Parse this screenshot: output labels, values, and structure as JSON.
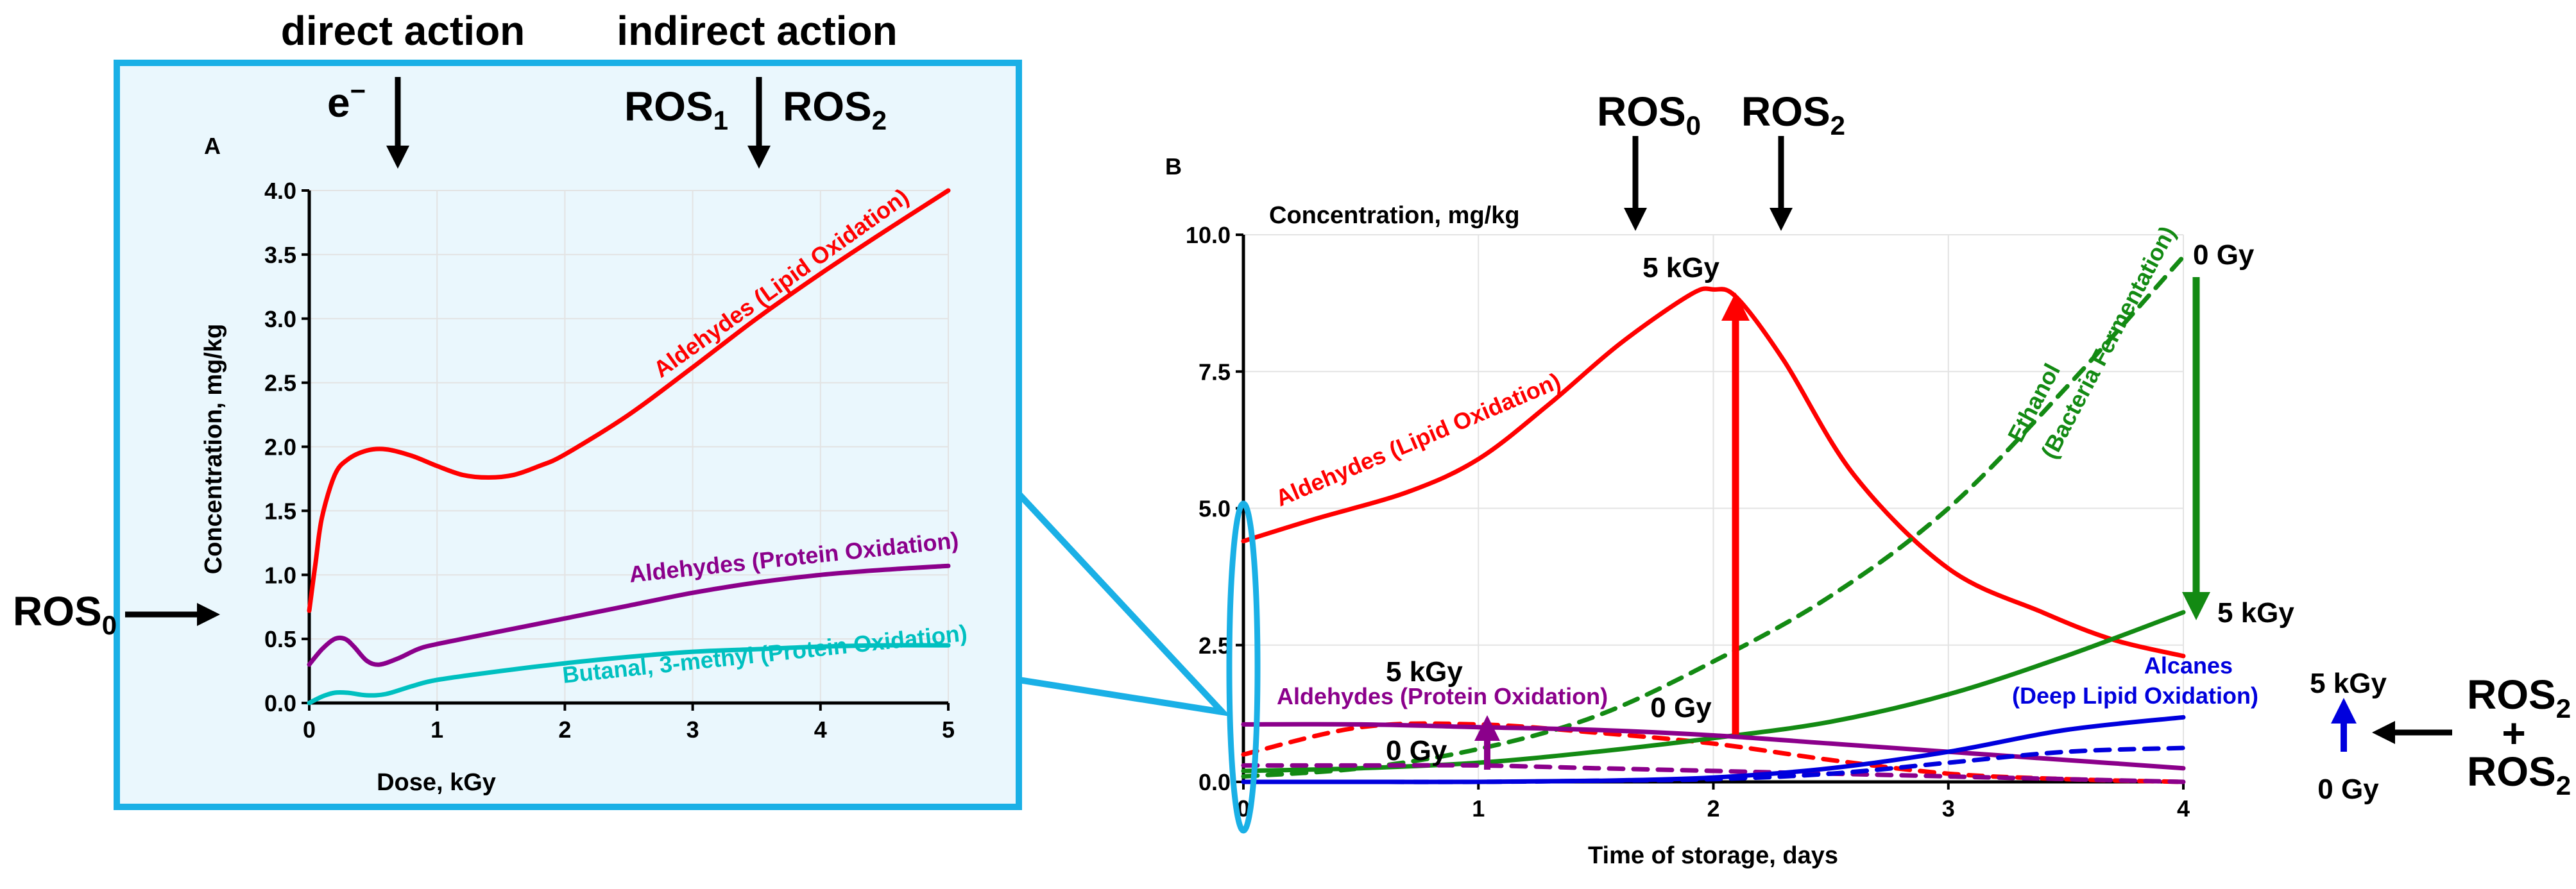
{
  "header": {
    "direct_action": "direct action",
    "indirect_action": "indirect action"
  },
  "colors": {
    "red": "#ff0000",
    "purple": "#8b008b",
    "cyan": "#00c0c0",
    "green": "#138a13",
    "blue": "#0000dd",
    "frame": "#1ab0e6",
    "inset_bg": "#eaf7fd"
  },
  "arrows": {
    "electron": "e",
    "electron_sup": "−",
    "ros1": "ROS",
    "ros1_sub": "1",
    "ros2": "ROS",
    "ros2_sub": "2",
    "ros0_left": "ROS",
    "ros0_left_sub": "0",
    "ros0_b": "ROS",
    "ros0_b_sub": "0",
    "ros2_b": "ROS",
    "ros2_b_sub": "2",
    "right_top": "ROS",
    "right_top_sub": "2",
    "plus": "+",
    "right_bottom": "ROS",
    "right_bottom_sub": "2"
  },
  "chart_data": [
    {
      "panel": "A",
      "type": "line",
      "xlabel": "Dose, kGy",
      "ylabel": "Concentration, mg/kg",
      "xlim": [
        0,
        5
      ],
      "ylim": [
        0,
        4.0
      ],
      "xticks": [
        "0",
        "1",
        "2",
        "3",
        "4",
        "5"
      ],
      "yticks": [
        "0.0",
        "0.5",
        "1.0",
        "1.5",
        "2.0",
        "2.5",
        "3.0",
        "3.5",
        "4.0"
      ],
      "grid": true,
      "series": [
        {
          "name": "Aldehydes (Lipid Oxidation)",
          "color": "#ff0000",
          "style": "solid",
          "x": [
            0,
            0.05,
            0.1,
            0.2,
            0.3,
            0.45,
            0.6,
            0.8,
            1.0,
            1.2,
            1.4,
            1.6,
            1.8,
            2.0,
            2.5,
            3.0,
            3.5,
            4.0,
            4.5,
            5.0
          ],
          "y": [
            0.72,
            1.1,
            1.45,
            1.78,
            1.9,
            1.97,
            1.98,
            1.93,
            1.85,
            1.78,
            1.76,
            1.78,
            1.85,
            1.94,
            2.25,
            2.62,
            3.0,
            3.35,
            3.68,
            4.0
          ]
        },
        {
          "name": "Aldehydes (Protein Oxidation)",
          "color": "#8b008b",
          "style": "solid",
          "x": [
            0,
            0.1,
            0.2,
            0.28,
            0.35,
            0.45,
            0.55,
            0.7,
            0.85,
            1.0,
            1.5,
            2.0,
            2.5,
            3.0,
            3.5,
            4.0,
            4.5,
            5.0
          ],
          "y": [
            0.3,
            0.42,
            0.5,
            0.5,
            0.44,
            0.33,
            0.3,
            0.35,
            0.42,
            0.46,
            0.56,
            0.66,
            0.76,
            0.86,
            0.94,
            1.0,
            1.04,
            1.07
          ]
        },
        {
          "name": "Butanal, 3-methyl (Protein Oxidation)",
          "color": "#00c0c0",
          "style": "solid",
          "x": [
            0,
            0.1,
            0.2,
            0.3,
            0.45,
            0.6,
            0.8,
            1.0,
            1.5,
            2.0,
            2.5,
            3.0,
            3.5,
            4.0,
            4.5,
            5.0
          ],
          "y": [
            0.0,
            0.05,
            0.08,
            0.08,
            0.06,
            0.07,
            0.13,
            0.18,
            0.25,
            0.31,
            0.36,
            0.4,
            0.42,
            0.44,
            0.45,
            0.45
          ]
        }
      ]
    },
    {
      "panel": "B",
      "type": "line",
      "title": "Concentration, mg/kg",
      "xlabel": "Time of storage, days",
      "xlim": [
        0,
        4
      ],
      "ylim": [
        0,
        10.0
      ],
      "xticks": [
        "0",
        "1",
        "2",
        "3",
        "4"
      ],
      "yticks": [
        "0.0",
        "2.5",
        "5.0",
        "7.5",
        "10.0"
      ],
      "grid": true,
      "series": [
        {
          "name": "Aldehydes (Lipid Oxidation) 5 kGy",
          "color": "#ff0000",
          "style": "solid",
          "x": [
            0,
            0.3,
            0.7,
            1.0,
            1.3,
            1.6,
            1.9,
            2.0,
            2.1,
            2.3,
            2.6,
            3.0,
            3.4,
            3.7,
            4.0
          ],
          "y": [
            4.4,
            4.8,
            5.3,
            5.9,
            6.9,
            8.0,
            8.9,
            9.0,
            8.85,
            7.7,
            5.6,
            3.9,
            3.1,
            2.6,
            2.3
          ]
        },
        {
          "name": "Aldehydes (Lipid Oxidation) 0 Gy",
          "color": "#ff0000",
          "style": "dashed",
          "x": [
            0,
            0.5,
            1.0,
            1.5,
            2.0,
            2.5,
            3.0,
            3.5,
            4.0
          ],
          "y": [
            0.5,
            1.0,
            1.05,
            0.9,
            0.7,
            0.4,
            0.15,
            0.05,
            0.0
          ]
        },
        {
          "name": "Ethanol (Bacteria Fermentation) 0 Gy",
          "color": "#138a13",
          "style": "dashed",
          "x": [
            0,
            0.5,
            1.0,
            1.5,
            2.0,
            2.5,
            3.0,
            3.5,
            4.0
          ],
          "y": [
            0.1,
            0.25,
            0.6,
            1.2,
            2.2,
            3.4,
            5.0,
            7.2,
            9.6
          ]
        },
        {
          "name": "Ethanol (Bacteria Fermentation) 5 kGy",
          "color": "#138a13",
          "style": "solid",
          "x": [
            0,
            0.5,
            1.0,
            1.5,
            2.0,
            2.5,
            3.0,
            3.5,
            4.0
          ],
          "y": [
            0.2,
            0.25,
            0.35,
            0.55,
            0.8,
            1.1,
            1.6,
            2.3,
            3.1
          ]
        },
        {
          "name": "Aldehydes (Protein Oxidation) 5 kGy",
          "color": "#8b008b",
          "style": "solid",
          "x": [
            0,
            0.5,
            1.0,
            1.5,
            2.0,
            2.5,
            3.0,
            3.5,
            4.0
          ],
          "y": [
            1.05,
            1.05,
            1.0,
            0.95,
            0.85,
            0.7,
            0.55,
            0.4,
            0.25
          ]
        },
        {
          "name": "Aldehydes (Protein Oxidation) 0 Gy",
          "color": "#8b008b",
          "style": "dashed",
          "x": [
            0,
            0.5,
            1.0,
            1.5,
            2.0,
            2.5,
            3.0,
            3.5,
            4.0
          ],
          "y": [
            0.3,
            0.3,
            0.3,
            0.25,
            0.2,
            0.15,
            0.1,
            0.05,
            0.0
          ]
        },
        {
          "name": "Alcanes (Deep Lipid Oxidation) 5 kGy",
          "color": "#0000dd",
          "style": "solid",
          "x": [
            0,
            0.5,
            1.0,
            1.5,
            2.0,
            2.5,
            3.0,
            3.5,
            4.0
          ],
          "y": [
            0.0,
            0.0,
            0.0,
            0.02,
            0.08,
            0.25,
            0.55,
            0.95,
            1.18
          ]
        },
        {
          "name": "Alcanes (Deep Lipid Oxidation) 0 Gy",
          "color": "#0000dd",
          "style": "dashed",
          "x": [
            0,
            0.5,
            1.0,
            1.5,
            2.0,
            2.5,
            3.0,
            3.5,
            4.0
          ],
          "y": [
            0.0,
            0.0,
            0.0,
            0.02,
            0.05,
            0.15,
            0.35,
            0.55,
            0.62
          ]
        }
      ],
      "annotations": [
        {
          "text": "Aldehydes (Lipid Oxidation)",
          "color": "#ff0000"
        },
        {
          "text": "5 kGy",
          "color": "#ff0000"
        },
        {
          "text": "0 Gy",
          "color": "#ff0000"
        },
        {
          "text": "Ethanol",
          "color": "#138a13"
        },
        {
          "text": "(Bacteria Fermentation)",
          "color": "#138a13"
        },
        {
          "text": "0 Gy",
          "color": "#138a13"
        },
        {
          "text": "5 kGy",
          "color": "#138a13"
        },
        {
          "text": "5 kGy",
          "color": "#8b008b"
        },
        {
          "text": "Aldehydes (Protein Oxidation)",
          "color": "#8b008b"
        },
        {
          "text": "0 Gy",
          "color": "#8b008b"
        },
        {
          "text": "Alcanes",
          "color": "#0000dd"
        },
        {
          "text": "(Deep Lipid Oxidation)",
          "color": "#0000dd"
        },
        {
          "text": "5 kGy",
          "color": "#0000dd"
        },
        {
          "text": "0 Gy",
          "color": "#0000dd"
        }
      ]
    }
  ]
}
